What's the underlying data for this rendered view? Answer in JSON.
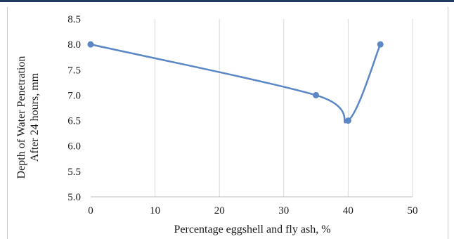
{
  "chart_data": {
    "type": "line",
    "title": "",
    "xlabel": "Percentage eggshell and fly ash, %",
    "ylabel": [
      "Depth of Water Penetration",
      "After 24 hours, mm"
    ],
    "xlim": [
      0,
      50
    ],
    "ylim": [
      5.0,
      8.5
    ],
    "x_ticks": [
      "0",
      "10",
      "20",
      "30",
      "40",
      "50"
    ],
    "y_ticks": [
      "5.0",
      "5.5",
      "6.0",
      "6.5",
      "7.0",
      "7.5",
      "8.0",
      "8.5"
    ],
    "grid": "vertical",
    "smooth": true,
    "series": [
      {
        "x": [
          0,
          35,
          40,
          45
        ],
        "y": [
          8.0,
          7.0,
          6.5,
          8.0
        ]
      }
    ]
  },
  "colors": {
    "series": "#5b87c5",
    "grid": "#d9d9d9",
    "axis": "#bfbfbf"
  }
}
